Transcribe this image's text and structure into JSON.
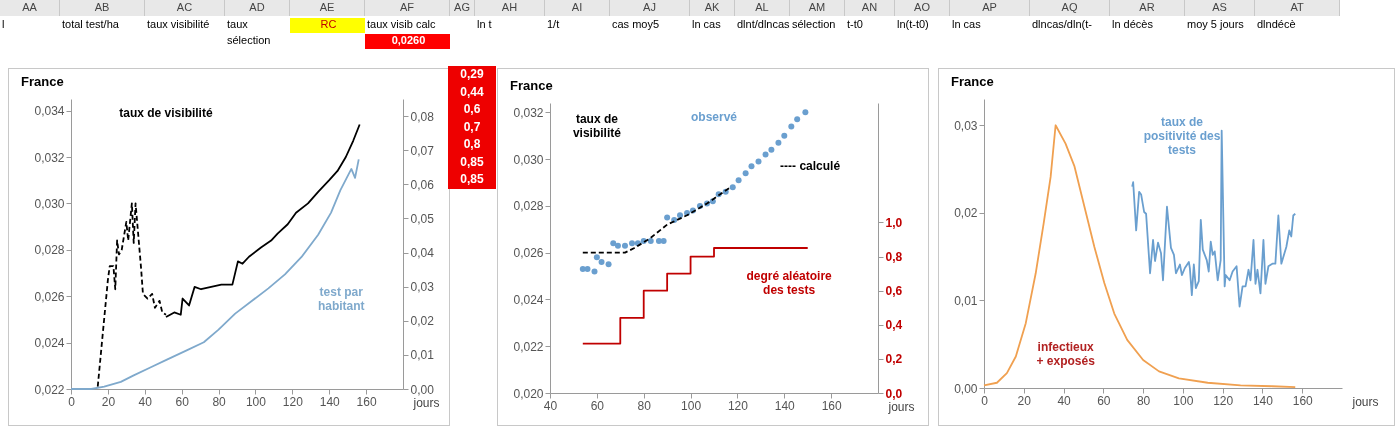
{
  "chart_data": [
    {
      "type": "other",
      "categories": [
        "AA",
        "AB",
        "AC",
        "AD",
        "AE",
        "AF",
        "AG",
        "AH",
        "AI",
        "AJ",
        "AK",
        "AL",
        "AM",
        "AN",
        "AO",
        "AP",
        "AQ",
        "AR",
        "AS",
        "AT"
      ],
      "annotations": [
        "l",
        "total test/ha",
        "taux visibilité",
        "taux",
        "RC",
        "taux visib calc",
        "ln t",
        "1/t",
        "cas moy5",
        "ln cas",
        "dlnt/dlncas",
        "sélection",
        "t-t0",
        "ln(t-t0)",
        "ln cas",
        "dlncas/dln(t-",
        "ln décès",
        "moy 5 jours",
        "dlndécè",
        "sélection",
        "0,0260"
      ]
    },
    {
      "type": "line",
      "title": "France",
      "xlabel": "jours",
      "xlim": [
        0,
        180
      ],
      "xticks": [
        0,
        20,
        40,
        60,
        80,
        100,
        120,
        140,
        160
      ],
      "ylim": [
        0.022,
        0.0345
      ],
      "yticks": [
        {
          "value": 0.022,
          "label": "0,022"
        },
        {
          "value": 0.024,
          "label": "0,024"
        },
        {
          "value": 0.026,
          "label": "0,026"
        },
        {
          "value": 0.028,
          "label": "0,028"
        },
        {
          "value": 0.03,
          "label": "0,030"
        },
        {
          "value": 0.032,
          "label": "0,032"
        },
        {
          "value": 0.034,
          "label": "0,034"
        }
      ],
      "y2lim": [
        0,
        0.085
      ],
      "y2ticks": [
        {
          "value": 0,
          "label": "0,00"
        },
        {
          "value": 0.01,
          "label": "0,01"
        },
        {
          "value": 0.02,
          "label": "0,02"
        },
        {
          "value": 0.03,
          "label": "0,03"
        },
        {
          "value": 0.04,
          "label": "0,04"
        },
        {
          "value": 0.05,
          "label": "0,05"
        },
        {
          "value": 0.06,
          "label": "0,06"
        },
        {
          "value": 0.07,
          "label": "0,07"
        },
        {
          "value": 0.08,
          "label": "0,08"
        }
      ],
      "annotations": [
        "taux de visibilité",
        "test par\nhabitant"
      ],
      "series": [
        {
          "color": "#000000",
          "line_style": "dashed",
          "x": [
            14.5,
            17,
            20,
            21,
            23,
            24,
            25,
            26,
            27.5,
            30,
            31,
            33,
            34,
            35,
            38,
            39,
            41.5,
            44,
            45.5,
            48,
            49.5,
            51.5
          ],
          "values": [
            0.0221,
            0.0242,
            0.0267,
            0.0273,
            0.0273,
            0.0263,
            0.0284,
            0.0278,
            0.028,
            0.0292,
            0.0284,
            0.03,
            0.0283,
            0.03,
            0.0272,
            0.0261,
            0.0259,
            0.0261,
            0.0255,
            0.0258,
            0.0253,
            0.0252
          ]
        },
        {
          "color": "#000000",
          "x": [
            51.5,
            56,
            59.5,
            60.5,
            64,
            67,
            70.5,
            76,
            81.5,
            87.5,
            90.5,
            93,
            96.5,
            103,
            108.5,
            112,
            117.5,
            122,
            128.5,
            134,
            140,
            144.5,
            149,
            153,
            156.5
          ],
          "values": [
            0.0251,
            0.0253,
            0.0252,
            0.0259,
            0.0256,
            0.0264,
            0.0263,
            0.0264,
            0.0265,
            0.0265,
            0.0275,
            0.0274,
            0.0277,
            0.0281,
            0.0284,
            0.0287,
            0.0291,
            0.0296,
            0.03,
            0.0305,
            0.031,
            0.0314,
            0.032,
            0.0327,
            0.0334
          ]
        },
        {
          "color": "#7fa9cc",
          "axis": "y2",
          "x": [
            0,
            11,
            18,
            27,
            34,
            43,
            52,
            63,
            72,
            80,
            89,
            98,
            107,
            116,
            125,
            134,
            141,
            146,
            152,
            154,
            156
          ],
          "values": [
            0,
            0,
            0.0007,
            0.0021,
            0.004,
            0.0063,
            0.0086,
            0.0114,
            0.0137,
            0.0174,
            0.0221,
            0.0258,
            0.0295,
            0.0336,
            0.0387,
            0.0452,
            0.0517,
            0.0582,
            0.0645,
            0.0619,
            0.0673
          ]
        }
      ]
    },
    {
      "type": "other",
      "annotations": [
        "0,29",
        "0,44",
        "0,6",
        "0,7",
        "0,8",
        "0,85",
        "0,85"
      ]
    },
    {
      "type": "line",
      "title": "France",
      "xlabel": "jours",
      "xlim": [
        40,
        180
      ],
      "xticks": [
        40,
        60,
        80,
        100,
        120,
        140,
        160
      ],
      "ylim": [
        0.02,
        0.0324
      ],
      "yticks": [
        {
          "value": 0.02,
          "label": "0,020"
        },
        {
          "value": 0.022,
          "label": "0,022"
        },
        {
          "value": 0.024,
          "label": "0,024"
        },
        {
          "value": 0.026,
          "label": "0,026"
        },
        {
          "value": 0.028,
          "label": "0,028"
        },
        {
          "value": 0.03,
          "label": "0,030"
        },
        {
          "value": 0.032,
          "label": "0,032"
        }
      ],
      "y2lim": [
        0,
        1.7
      ],
      "y2ticks": [
        {
          "value": 0,
          "label": "0,0"
        },
        {
          "value": 0.2,
          "label": "0,2"
        },
        {
          "value": 0.4,
          "label": "0,4"
        },
        {
          "value": 0.6,
          "label": "0,6"
        },
        {
          "value": 0.8,
          "label": "0,8"
        },
        {
          "value": 1,
          "label": "1,0"
        }
      ],
      "annotations": [
        "taux de\nvisibilité",
        "observé",
        "---- calculé",
        "degré aléatoire\ndes tests"
      ],
      "series": [
        {
          "type": "scatter",
          "color": "#6a9fcf",
          "x": [
            54,
            56,
            59,
            60,
            62,
            65,
            67,
            69,
            72,
            75,
            77.5,
            80,
            83,
            86.5,
            88.5,
            90,
            93,
            95.5,
            98.5,
            101,
            104,
            107,
            109.5,
            112,
            115,
            118,
            120.5,
            123.5,
            126,
            129,
            132,
            134.5,
            137.5,
            140,
            143,
            145.5,
            149
          ],
          "values": [
            0.0253,
            0.0253,
            0.0252,
            0.0258,
            0.0256,
            0.0255,
            0.0264,
            0.0263,
            0.0263,
            0.0264,
            0.0264,
            0.0265,
            0.0265,
            0.0265,
            0.0265,
            0.0275,
            0.0274,
            0.0276,
            0.0277,
            0.0278,
            0.028,
            0.0281,
            0.0282,
            0.0285,
            0.0286,
            0.0288,
            0.0291,
            0.0294,
            0.0297,
            0.0299,
            0.0302,
            0.0304,
            0.0307,
            0.031,
            0.0314,
            0.0317,
            0.032
          ]
        },
        {
          "type": "line",
          "color": "#000000",
          "line_style": "dashed",
          "x": [
            54,
            72,
            76,
            82.5,
            90,
            98.5,
            107,
            117
          ],
          "values": [
            0.026,
            0.026,
            0.0262,
            0.0266,
            0.0272,
            0.0276,
            0.0281,
            0.0288
          ]
        },
        {
          "type": "step",
          "color": "#c00000",
          "axis": "y2",
          "x": [
            54,
            70,
            80,
            90,
            100,
            110,
            150
          ],
          "values": [
            0.29,
            0.44,
            0.6,
            0.7,
            0.8,
            0.85,
            0.85
          ]
        }
      ]
    },
    {
      "type": "line",
      "title": "France",
      "xlabel": "jours",
      "xlim": [
        0,
        180
      ],
      "xticks": [
        0,
        20,
        40,
        60,
        80,
        100,
        120,
        140,
        160
      ],
      "ylim": [
        0,
        0.033
      ],
      "yticks": [
        {
          "value": 0,
          "label": "0,00"
        },
        {
          "value": 0.01,
          "label": "0,01"
        },
        {
          "value": 0.02,
          "label": "0,02"
        },
        {
          "value": 0.03,
          "label": "0,03"
        }
      ],
      "annotations": [
        "taux de\npositivité des\ntests",
        "infectieux\n+ exposés"
      ],
      "series": [
        {
          "color": "#f0a050",
          "x": [
            0,
            6.5,
            11.5,
            16,
            21,
            26,
            30,
            33.5,
            36,
            41,
            45.5,
            50.5,
            55.5,
            60.5,
            65.5,
            72,
            80,
            88,
            98,
            112.5,
            129,
            145,
            156.5
          ],
          "values": [
            0.0003,
            0.0006,
            0.0017,
            0.0036,
            0.0074,
            0.0131,
            0.0188,
            0.0241,
            0.03,
            0.0279,
            0.0253,
            0.0207,
            0.0161,
            0.012,
            0.0085,
            0.0055,
            0.0032,
            0.0019,
            0.0011,
            0.0006,
            0.0003,
            0.0002,
            0.0001
          ]
        },
        {
          "color": "#6a9fcf",
          "x": [
            74.5,
            75,
            76.5,
            78,
            79,
            80.5,
            81.5,
            83.5,
            85,
            86,
            87.5,
            89,
            90,
            92,
            94,
            95.5,
            96.5,
            98.5,
            99.5,
            101,
            103,
            103.5,
            104.5,
            105.5,
            106.5,
            108,
            109,
            110,
            112,
            113,
            114,
            115,
            116,
            117.5,
            119,
            119.5,
            121,
            121.5,
            123.5,
            125,
            127,
            128.5,
            130,
            131.5,
            133,
            134,
            135.5,
            136.5,
            137.5,
            139,
            140.5,
            141.5,
            143,
            145,
            146.5,
            148,
            149.5,
            152,
            153.5,
            154.5,
            155.5,
            156.5
          ],
          "values": [
            0.023,
            0.0235,
            0.018,
            0.0224,
            0.0221,
            0.0201,
            0.0199,
            0.0131,
            0.0169,
            0.0145,
            0.0166,
            0.0154,
            0.0123,
            0.0207,
            0.016,
            0.0152,
            0.0131,
            0.0141,
            0.0129,
            0.0137,
            0.0144,
            0.0137,
            0.0106,
            0.0141,
            0.0114,
            0.0122,
            0.0192,
            0.0158,
            0.0146,
            0.0133,
            0.0167,
            0.0152,
            0.0156,
            0.0123,
            0.0146,
            0.0294,
            0.0116,
            0.0129,
            0.0123,
            0.0133,
            0.0139,
            0.0093,
            0.0116,
            0.0116,
            0.0135,
            0.0123,
            0.0169,
            0.0119,
            0.0135,
            0.0108,
            0.0169,
            0.0119,
            0.0139,
            0.0142,
            0.0142,
            0.0197,
            0.0142,
            0.0161,
            0.018,
            0.0173,
            0.0197,
            0.0199
          ]
        }
      ]
    }
  ]
}
